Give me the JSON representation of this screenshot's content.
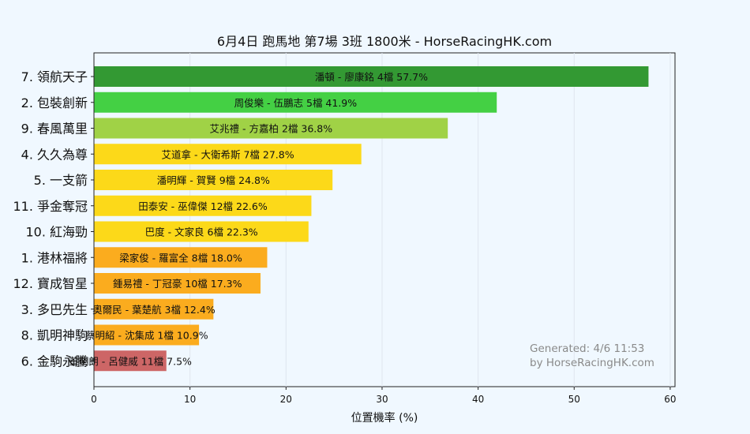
{
  "chart_data": {
    "type": "bar",
    "orientation": "horizontal",
    "title": "6月4日  跑馬地  第7場  3班  1800米 - HorseRacingHK.com",
    "xlabel": "位置機率 (%)",
    "ylabel": "",
    "xlim": [
      0,
      60.5
    ],
    "xticks": [
      "0",
      "10",
      "20",
      "30",
      "40",
      "50",
      "60"
    ],
    "grid": true,
    "categories": [
      "7. 領航天子",
      "2. 包裝創新",
      "9. 春風萬里",
      "4. 久久為尊",
      "5. 一支箭",
      "11. 爭金奪冠",
      "10. 紅海勁",
      "1. 港林福將",
      "12. 寶成智星",
      "3. 多巴先生",
      "8. 凱明神駒",
      "6. 金駒永騰"
    ],
    "values": [
      57.7,
      41.9,
      36.8,
      27.8,
      24.8,
      22.6,
      22.3,
      18.0,
      17.3,
      12.4,
      10.9,
      7.5
    ],
    "labels": [
      "潘頓 - 廖康銘 4檔  57.7%",
      "周俊樂 - 伍鵬志 5檔  41.9%",
      "艾兆禮 - 方嘉柏 2檔  36.8%",
      "艾道拿 - 大衛希斯 7檔  27.8%",
      "潘明輝 - 賀賢 9檔  24.8%",
      "田泰安 - 巫偉傑 12檔  22.6%",
      "巴度 - 文家良 6檔  22.3%",
      "梁家俊 - 羅富全 8檔  18.0%",
      "鍾易禮 - 丁冠豪 10檔  17.3%",
      "奧爾民 - 葉楚航 3檔  12.4%",
      "蔡明紹 - 沈集成 1檔  10.9%",
      "董明朗 - 呂健威 11檔  7.5%"
    ],
    "colors": [
      "#339933",
      "#44d044",
      "#a0d246",
      "#fcd919",
      "#fcd919",
      "#fcd919",
      "#fcd919",
      "#fbac1e",
      "#fbac1e",
      "#fbac1e",
      "#fbac1e",
      "#cd6666"
    ]
  },
  "footer": {
    "generated": "Generated: 4/6 11:53",
    "by": "by HorseRacingHK.com"
  }
}
